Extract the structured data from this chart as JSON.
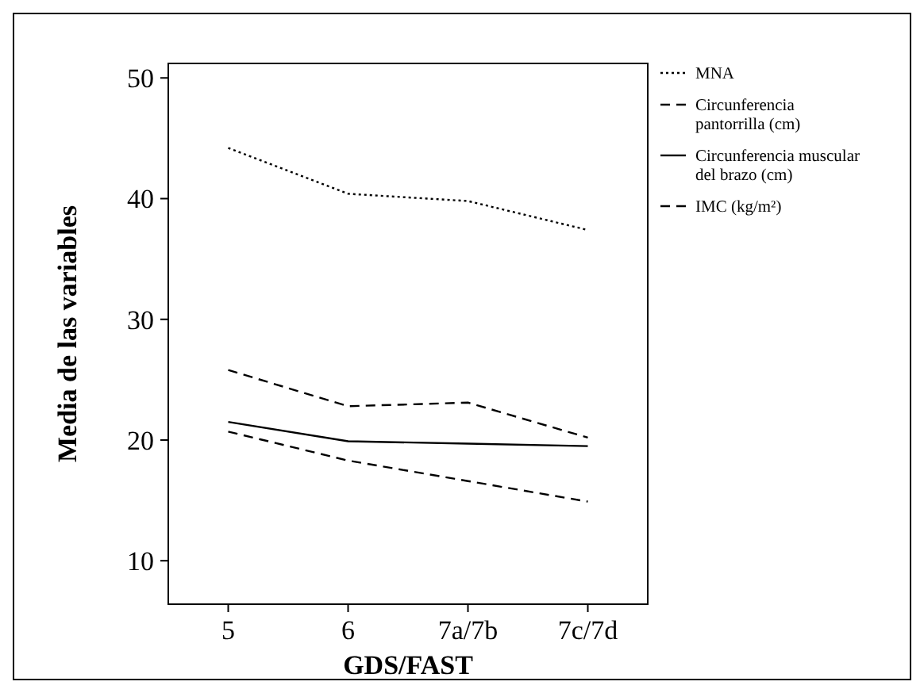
{
  "chart_data": {
    "type": "line",
    "xlabel": "GDS/FAST",
    "ylabel": "Media de las variables",
    "categories": [
      "5",
      "6",
      "7a/7b",
      "7c/7d"
    ],
    "series": [
      {
        "name": "MNA",
        "color": "#000000",
        "line_style": "dotted",
        "values": [
          44.2,
          40.4,
          39.8,
          37.4
        ]
      },
      {
        "name": "Circunferencia pantorrilla (cm)",
        "color": "#000000",
        "line_style": "dashed",
        "values": [
          25.8,
          22.8,
          23.1,
          20.2
        ]
      },
      {
        "name": "Circunferencia muscular del brazo (cm)",
        "color": "#000000",
        "line_style": "solid",
        "values": [
          21.5,
          19.9,
          19.7,
          19.5
        ]
      },
      {
        "name": "IMC (kg/m²)",
        "color": "#000000",
        "line_style": "dashed",
        "values": [
          20.7,
          18.3,
          16.6,
          14.9
        ]
      }
    ],
    "ylim": [
      6.4,
      51.2
    ],
    "yticks": [
      10,
      20,
      30,
      40,
      50
    ],
    "legend": "right",
    "grid": false
  }
}
